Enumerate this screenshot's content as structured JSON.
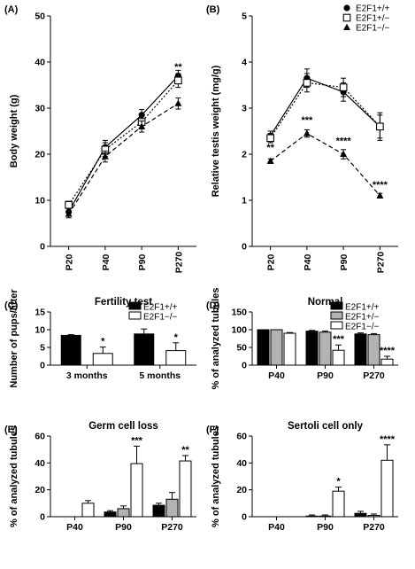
{
  "chart_data": [
    {
      "id": "A",
      "panel_label": "(A)",
      "type": "line",
      "title": "",
      "xlabel": "",
      "ylabel": "Body weight (g)",
      "categories": [
        "P20",
        "P40",
        "P90",
        "P270"
      ],
      "ylim": [
        0,
        50
      ],
      "yticks": [
        0,
        10,
        20,
        30,
        40,
        50
      ],
      "series": [
        {
          "name": "E2F1+/+",
          "marker": "circle",
          "line": "solid",
          "values": [
            7.5,
            21.5,
            28.5,
            37
          ],
          "errors": [
            0.8,
            1.5,
            1.2,
            1.2
          ]
        },
        {
          "name": "E2F1+/−",
          "marker": "square",
          "line": "dotted",
          "values": [
            9,
            21,
            27,
            36
          ],
          "errors": [
            0.8,
            1.5,
            1.5,
            1.5
          ]
        },
        {
          "name": "E2F1−/−",
          "marker": "triangle",
          "line": "dashed",
          "values": [
            7,
            19.5,
            26,
            31
          ],
          "errors": [
            0.8,
            1.2,
            1.2,
            1.2
          ]
        }
      ],
      "annotations": [
        {
          "category": "P270",
          "value": 39,
          "text": "**"
        }
      ]
    },
    {
      "id": "B",
      "panel_label": "(B)",
      "type": "line",
      "title": "",
      "xlabel": "",
      "ylabel": "Relative testis weight (mg/g)",
      "categories": [
        "P20",
        "P40",
        "P90",
        "P270"
      ],
      "ylim": [
        0,
        5
      ],
      "yticks": [
        0,
        1,
        2,
        3,
        4,
        5
      ],
      "legend_position": "top-right",
      "series": [
        {
          "name": "E2F1+/+",
          "marker": "circle",
          "line": "solid",
          "values": [
            2.4,
            3.65,
            3.35,
            2.6
          ],
          "errors": [
            0.1,
            0.2,
            0.2,
            0.3
          ]
        },
        {
          "name": "E2F1+/−",
          "marker": "square",
          "line": "dotted",
          "values": [
            2.35,
            3.55,
            3.45,
            2.6
          ],
          "errors": [
            0.1,
            0.2,
            0.2,
            0.25
          ]
        },
        {
          "name": "E2F1−/−",
          "marker": "triangle",
          "line": "dashed",
          "values": [
            1.85,
            2.45,
            2.0,
            1.1
          ],
          "errors": [
            0.05,
            0.08,
            0.1,
            0.05
          ]
        }
      ],
      "annotations": [
        {
          "category": "P20",
          "value": 2.15,
          "text": "**"
        },
        {
          "category": "P40",
          "value": 2.75,
          "text": "***"
        },
        {
          "category": "P90",
          "value": 2.3,
          "text": "****"
        },
        {
          "category": "P270",
          "value": 1.35,
          "text": "****"
        }
      ]
    },
    {
      "id": "C",
      "panel_label": "(C)",
      "type": "bar",
      "title": "Fertility test",
      "xlabel": "",
      "ylabel": "Number of pups/litter",
      "categories": [
        "3 months",
        "5 months"
      ],
      "ylim": [
        0,
        15
      ],
      "yticks": [
        0,
        5,
        10,
        15
      ],
      "legend_position": "top-right",
      "series": [
        {
          "name": "E2F1+/+",
          "color": "#000000",
          "values": [
            8.4,
            8.8
          ],
          "errors": [
            0.2,
            1.4
          ]
        },
        {
          "name": "E2F1−/−",
          "color": "#ffffff",
          "values": [
            3.3,
            4.1
          ],
          "errors": [
            1.8,
            2.2
          ]
        }
      ],
      "annotations": [
        {
          "category": "3 months",
          "series": "E2F1−/−",
          "text": "*"
        },
        {
          "category": "5 months",
          "series": "E2F1−/−",
          "text": "*"
        }
      ]
    },
    {
      "id": "D",
      "panel_label": "(D)",
      "type": "bar",
      "title": "Normal",
      "xlabel": "",
      "ylabel": "% of analyzed tubules",
      "categories": [
        "P40",
        "P90",
        "P270"
      ],
      "ylim": [
        0,
        150
      ],
      "yticks": [
        0,
        50,
        100,
        150
      ],
      "legend_position": "top-right",
      "series": [
        {
          "name": "E2F1+/+",
          "color": "#000000",
          "values": [
            100,
            96,
            88
          ],
          "errors": [
            0,
            2,
            3
          ]
        },
        {
          "name": "E2F1+/−",
          "color": "#b3b3b3",
          "values": [
            100,
            93,
            86
          ],
          "errors": [
            0,
            3,
            3
          ]
        },
        {
          "name": "E2F1−/−",
          "color": "#ffffff",
          "values": [
            90,
            42,
            17
          ],
          "errors": [
            2,
            15,
            8
          ]
        }
      ],
      "annotations": [
        {
          "category": "P90",
          "series": "E2F1−/−",
          "text": "***"
        },
        {
          "category": "P270",
          "series": "E2F1−/−",
          "text": "****"
        }
      ]
    },
    {
      "id": "E",
      "panel_label": "(E)",
      "type": "bar",
      "title": "Germ cell loss",
      "xlabel": "",
      "ylabel": "% of analyzed tubules",
      "categories": [
        "P40",
        "P90",
        "P270"
      ],
      "ylim": [
        0,
        60
      ],
      "yticks": [
        0,
        20,
        40,
        60
      ],
      "series": [
        {
          "name": "E2F1+/+",
          "color": "#000000",
          "values": [
            0,
            3.5,
            8.5
          ],
          "errors": [
            0,
            1,
            1.5
          ]
        },
        {
          "name": "E2F1+/−",
          "color": "#b3b3b3",
          "values": [
            0,
            6,
            13
          ],
          "errors": [
            0,
            2,
            5
          ]
        },
        {
          "name": "E2F1−/−",
          "color": "#ffffff",
          "values": [
            10,
            39.5,
            41.5
          ],
          "errors": [
            2,
            13,
            4
          ]
        }
      ],
      "annotations": [
        {
          "category": "P90",
          "series": "E2F1−/−",
          "text": "***"
        },
        {
          "category": "P270",
          "series": "E2F1−/−",
          "text": "**"
        }
      ]
    },
    {
      "id": "F",
      "panel_label": "(F)",
      "type": "bar",
      "title": "Sertoli cell only",
      "xlabel": "",
      "ylabel": "% of analyzed tubules",
      "categories": [
        "P40",
        "P90",
        "P270"
      ],
      "ylim": [
        0,
        60
      ],
      "yticks": [
        0,
        20,
        40,
        60
      ],
      "series": [
        {
          "name": "E2F1+/+",
          "color": "#000000",
          "values": [
            0,
            0.5,
            2.5
          ],
          "errors": [
            0,
            0.8,
            1.5
          ]
        },
        {
          "name": "E2F1+/−",
          "color": "#b3b3b3",
          "values": [
            0,
            0.5,
            1
          ],
          "errors": [
            0,
            0.8,
            1
          ]
        },
        {
          "name": "E2F1−/−",
          "color": "#ffffff",
          "values": [
            0,
            19,
            42
          ],
          "errors": [
            0,
            3,
            11.5
          ]
        }
      ],
      "annotations": [
        {
          "category": "P90",
          "series": "E2F1−/−",
          "text": "*"
        },
        {
          "category": "P270",
          "series": "E2F1−/−",
          "text": "****"
        }
      ]
    }
  ]
}
